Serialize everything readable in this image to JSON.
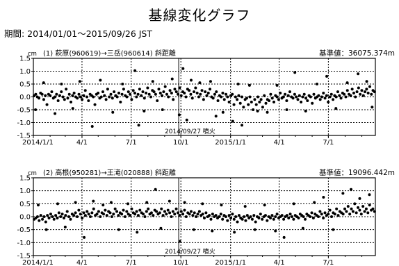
{
  "page": {
    "title": "基線変化グラフ",
    "period": "期間: 2014/01/01～2015/09/26 JST"
  },
  "chart_data": [
    {
      "type": "scatter",
      "unit": "cm",
      "series_label": "(1) 萩原(960619)→三岳(960614) 斜距離",
      "reference": "基準値：36075.374m",
      "event_label": "2014/09/27 噴火",
      "event_x": "2014/09/27",
      "xlim": [
        "2014/01/01",
        "2015/09/26"
      ],
      "xticks": [
        "2014/1/1",
        "4/1",
        "7/1",
        "10/1",
        "2015/1/1",
        "4/1",
        "7/1"
      ],
      "ylim": [
        -1.5,
        1.5
      ],
      "yticks": [
        "1.5",
        "1.0",
        "0.5",
        "0.0",
        "-0.5",
        "-1.0",
        "-1.5"
      ],
      "x_start": "2014/01/01",
      "series": [
        {
          "values": [
            0.05,
            0.1,
            0.0,
            -0.05,
            0.15,
            0.1,
            -0.1,
            0.05,
            -0.3,
            0.1,
            0.05,
            0.2,
            -0.05,
            0.0,
            0.1,
            -0.15,
            0.05,
            0.2,
            0.0,
            -0.1,
            0.3,
            -0.05,
            0.1,
            -0.2,
            0.05,
            0.15,
            0.0,
            -0.05,
            0.1,
            0.0,
            -0.1,
            0.05,
            0.25,
            0.0,
            -0.15,
            0.1,
            0.05,
            0.0,
            -0.3,
            0.1,
            0.15,
            -0.05,
            0.0,
            0.2,
            0.05,
            -0.1,
            0.3,
            0.0,
            0.1,
            -0.05,
            0.2,
            0.05,
            0.0,
            0.15,
            -0.2,
            0.1,
            0.3,
            0.05,
            0.0,
            0.2,
            0.1,
            -0.1,
            0.25,
            0.15,
            0.0,
            0.1,
            0.3,
            0.05,
            0.2,
            -0.05,
            0.15,
            0.35,
            0.1,
            0.0,
            0.25,
            0.2,
            0.1,
            -0.15,
            0.3,
            0.15,
            0.05,
            0.2,
            0.4,
            0.1,
            0.0,
            0.25,
            0.15,
            -0.1,
            0.3,
            0.2,
            0.1,
            0.35,
            0.05,
            0.2,
            0.15,
            0.0,
            0.3,
            0.25,
            0.1,
            -0.05,
            0.2,
            0.35,
            0.15,
            0.0,
            0.1,
            0.25,
            -0.1,
            0.2,
            0.05,
            0.15,
            0.3,
            0.0,
            -0.05,
            0.1,
            0.2,
            -0.15,
            0.05,
            0.0,
            0.15,
            -0.1,
            0.1,
            0.0,
            -0.2,
            0.05,
            0.1,
            -0.3,
            0.0,
            -0.1,
            0.05,
            -0.25,
            0.0,
            -0.4,
            -0.1,
            -0.05,
            -0.3,
            0.0,
            -0.2,
            -0.5,
            -0.1,
            -0.3,
            0.0,
            -0.2,
            -0.1,
            -0.4,
            0.05,
            -0.25,
            -0.1,
            -0.15,
            0.1,
            -0.05,
            -0.2,
            0.05,
            0.0,
            -0.1,
            0.15,
            -0.05,
            0.0,
            0.1,
            -0.15,
            0.05,
            0.2,
            0.0,
            -0.05,
            0.1,
            0.0,
            -0.1,
            0.05,
            -0.2,
            0.0,
            0.1,
            -0.05,
            -0.15,
            0.05,
            0.0,
            -0.25,
            0.1,
            -0.05,
            0.0,
            0.05,
            -0.1,
            0.0,
            0.15,
            -0.05,
            0.05,
            -0.2,
            0.0,
            0.1,
            -0.1,
            0.05,
            0.0,
            0.2,
            0.05,
            -0.05,
            0.15,
            0.1,
            0.0,
            0.25,
            0.1,
            0.05,
            0.3,
            0.15,
            0.0,
            0.2,
            0.35,
            0.1,
            0.25,
            0.05,
            0.2,
            0.3,
            0.15,
            0.4,
            0.1,
            0.25,
            0.2
          ],
          "outliers": [
            {
              "x": "2014/01/05",
              "y": -0.5
            },
            {
              "x": "2014/01/20",
              "y": 0.55
            },
            {
              "x": "2014/02/10",
              "y": -0.65
            },
            {
              "x": "2014/02/22",
              "y": 0.5
            },
            {
              "x": "2014/03/15",
              "y": -0.45
            },
            {
              "x": "2014/03/28",
              "y": 0.6
            },
            {
              "x": "2014/04/20",
              "y": -1.15
            },
            {
              "x": "2014/05/05",
              "y": 0.65
            },
            {
              "x": "2014/05/28",
              "y": -0.6
            },
            {
              "x": "2014/06/15",
              "y": 0.5
            },
            {
              "x": "2014/07/08",
              "y": 1.02
            },
            {
              "x": "2014/07/15",
              "y": -1.1
            },
            {
              "x": "2014/07/25",
              "y": -0.55
            },
            {
              "x": "2014/08/10",
              "y": 0.6
            },
            {
              "x": "2014/08/28",
              "y": -0.5
            },
            {
              "x": "2014/09/15",
              "y": 0.7
            },
            {
              "x": "2014/09/28",
              "y": -0.7
            },
            {
              "x": "2014/10/05",
              "y": 1.1
            },
            {
              "x": "2014/10/12",
              "y": -0.9
            },
            {
              "x": "2014/10/20",
              "y": 0.65
            },
            {
              "x": "2014/11/05",
              "y": 0.55
            },
            {
              "x": "2014/11/25",
              "y": 0.6
            },
            {
              "x": "2014/12/05",
              "y": -0.75
            },
            {
              "x": "2014/12/18",
              "y": -0.6
            },
            {
              "x": "2015/01/05",
              "y": -0.95
            },
            {
              "x": "2015/01/15",
              "y": 0.5
            },
            {
              "x": "2015/01/22",
              "y": -1.1
            },
            {
              "x": "2015/02/05",
              "y": 0.45
            },
            {
              "x": "2015/02/20",
              "y": -0.55
            },
            {
              "x": "2015/03/10",
              "y": -0.6
            },
            {
              "x": "2015/03/28",
              "y": 0.45
            },
            {
              "x": "2015/04/15",
              "y": -0.5
            },
            {
              "x": "2015/04/30",
              "y": 0.95
            },
            {
              "x": "2015/05/20",
              "y": -0.55
            },
            {
              "x": "2015/06/10",
              "y": 0.5
            },
            {
              "x": "2015/06/28",
              "y": 0.8
            },
            {
              "x": "2015/07/15",
              "y": -0.45
            },
            {
              "x": "2015/08/05",
              "y": 0.55
            },
            {
              "x": "2015/08/25",
              "y": 0.9
            },
            {
              "x": "2015/09/10",
              "y": 0.6
            },
            {
              "x": "2015/09/20",
              "y": -0.4
            }
          ]
        }
      ]
    },
    {
      "type": "scatter",
      "unit": "cm",
      "series_label": "(2) 高根(950281)→王滝(020888) 斜距離",
      "reference": "基準値：19096.442m",
      "event_label": "2014/09/27 噴火",
      "event_x": "2014/09/27",
      "xlim": [
        "2014/01/01",
        "2015/09/26"
      ],
      "xticks": [
        "2014/1/1",
        "4/1",
        "7/1",
        "10/1",
        "2015/1/1",
        "4/1",
        "7/1"
      ],
      "ylim": [
        -1.5,
        1.5
      ],
      "yticks": [
        "1.5",
        "1.0",
        "0.5",
        "0.0",
        "-0.5",
        "-1.0",
        "-1.5"
      ],
      "x_start": "2014/01/01",
      "series": [
        {
          "values": [
            -0.1,
            -0.05,
            0.0,
            -0.15,
            0.05,
            -0.1,
            0.0,
            -0.2,
            0.05,
            -0.05,
            0.1,
            0.0,
            -0.1,
            0.05,
            -0.05,
            0.15,
            0.0,
            0.1,
            -0.05,
            0.05,
            0.2,
            0.0,
            -0.1,
            0.1,
            0.05,
            0.15,
            0.0,
            0.25,
            0.1,
            -0.05,
            0.15,
            0.05,
            0.2,
            0.1,
            0.0,
            0.15,
            0.3,
            0.05,
            0.1,
            0.2,
            0.0,
            0.15,
            0.1,
            0.25,
            0.05,
            0.2,
            0.15,
            0.0,
            0.1,
            0.3,
            0.2,
            0.05,
            0.15,
            0.1,
            0.25,
            0.0,
            0.2,
            0.1,
            0.05,
            0.3,
            0.15,
            0.1,
            0.2,
            0.05,
            0.25,
            0.15,
            0.1,
            0.0,
            0.2,
            0.3,
            0.1,
            0.15,
            0.05,
            0.25,
            0.2,
            0.1,
            0.15,
            0.3,
            0.05,
            0.2,
            0.1,
            0.25,
            0.15,
            0.0,
            0.2,
            0.1,
            0.3,
            0.15,
            0.05,
            0.2,
            0.1,
            0.25,
            0.0,
            0.15,
            0.1,
            0.2,
            0.05,
            0.15,
            0.0,
            0.1,
            0.2,
            0.05,
            0.1,
            -0.05,
            0.15,
            0.0,
            0.05,
            -0.1,
            0.1,
            0.0,
            0.05,
            -0.05,
            0.0,
            0.1,
            -0.1,
            0.05,
            0.0,
            -0.15,
            0.05,
            -0.05,
            0.1,
            -0.1,
            0.0,
            -0.2,
            0.05,
            -0.05,
            -0.1,
            0.0,
            -0.15,
            0.05,
            -0.05,
            0.0,
            -0.1,
            0.05,
            -0.2,
            0.0,
            -0.05,
            0.1,
            -0.1,
            0.0,
            0.05,
            -0.15,
            0.0,
            -0.05,
            0.05,
            -0.1,
            0.0,
            0.1,
            -0.05,
            0.0,
            0.05,
            -0.1,
            0.0,
            0.05,
            -0.05,
            0.1,
            0.0,
            -0.1,
            0.05,
            0.0,
            -0.05,
            0.1,
            0.05,
            0.0,
            -0.1,
            0.1,
            0.05,
            0.0,
            0.15,
            -0.05,
            0.1,
            0.05,
            0.0,
            0.2,
            0.1,
            -0.05,
            0.15,
            0.05,
            0.1,
            0.25,
            0.0,
            0.15,
            0.1,
            0.3,
            0.05,
            0.2,
            0.15,
            0.1,
            0.3,
            0.2,
            0.4,
            0.1,
            0.3,
            0.2,
            0.5,
            0.15,
            0.35,
            0.25,
            0.1,
            0.4,
            0.2,
            0.3,
            0.15,
            0.45,
            0.25,
            0.3,
            0.2
          ],
          "outliers": [
            {
              "x": "2014/01/10",
              "y": 0.45
            },
            {
              "x": "2014/01/25",
              "y": -0.5
            },
            {
              "x": "2014/02/15",
              "y": 0.5
            },
            {
              "x": "2014/03/01",
              "y": -0.4
            },
            {
              "x": "2014/03/20",
              "y": 0.55
            },
            {
              "x": "2014/04/05",
              "y": -0.8
            },
            {
              "x": "2014/04/22",
              "y": 0.6
            },
            {
              "x": "2014/05/10",
              "y": 0.45
            },
            {
              "x": "2014/05/25",
              "y": 0.55
            },
            {
              "x": "2014/06/08",
              "y": -0.5
            },
            {
              "x": "2014/06/25",
              "y": 0.5
            },
            {
              "x": "2014/07/12",
              "y": -0.6
            },
            {
              "x": "2014/07/30",
              "y": 0.55
            },
            {
              "x": "2014/08/15",
              "y": 1.05
            },
            {
              "x": "2014/08/25",
              "y": -0.45
            },
            {
              "x": "2014/09/10",
              "y": 0.6
            },
            {
              "x": "2014/09/29",
              "y": -0.95
            },
            {
              "x": "2014/10/08",
              "y": 0.55
            },
            {
              "x": "2014/10/25",
              "y": -0.5
            },
            {
              "x": "2014/11/10",
              "y": 0.5
            },
            {
              "x": "2014/11/28",
              "y": -0.55
            },
            {
              "x": "2014/12/15",
              "y": 0.45
            },
            {
              "x": "2015/01/08",
              "y": -0.6
            },
            {
              "x": "2015/01/28",
              "y": 0.4
            },
            {
              "x": "2015/02/15",
              "y": -0.5
            },
            {
              "x": "2015/03/05",
              "y": 0.45
            },
            {
              "x": "2015/03/25",
              "y": -0.55
            },
            {
              "x": "2015/04/10",
              "y": -0.8
            },
            {
              "x": "2015/04/28",
              "y": 0.5
            },
            {
              "x": "2015/05/15",
              "y": -0.45
            },
            {
              "x": "2015/06/05",
              "y": 0.55
            },
            {
              "x": "2015/06/22",
              "y": 0.75
            },
            {
              "x": "2015/07/10",
              "y": -0.5
            },
            {
              "x": "2015/07/28",
              "y": 0.9
            },
            {
              "x": "2015/08/12",
              "y": 1.05
            },
            {
              "x": "2015/08/28",
              "y": 0.7
            },
            {
              "x": "2015/09/15",
              "y": 0.85
            }
          ]
        }
      ]
    }
  ]
}
